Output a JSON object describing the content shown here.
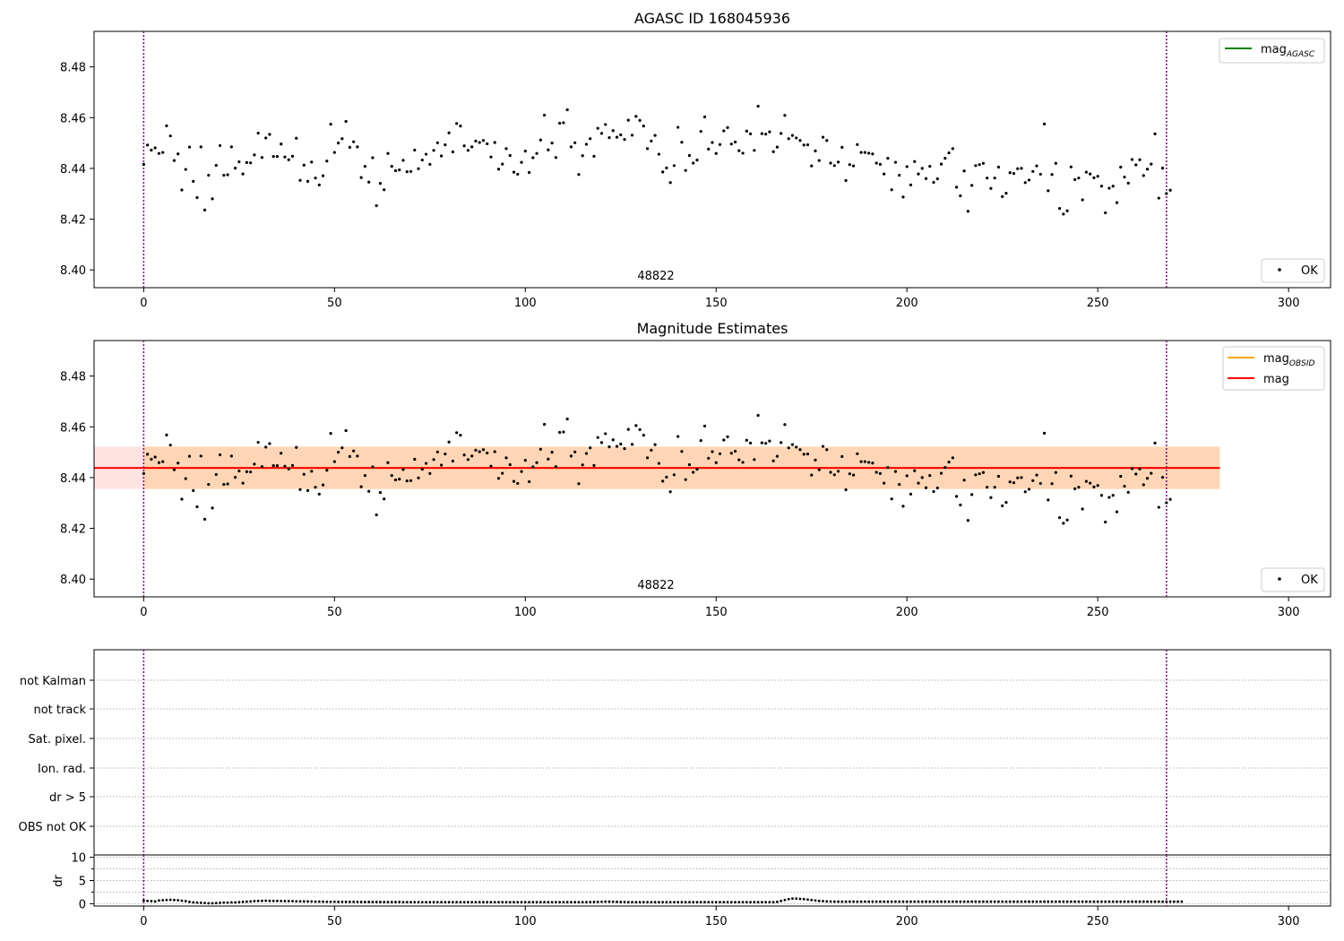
{
  "chart_data": [
    {
      "type": "scatter",
      "title": "AGASC ID 168045936",
      "xlim": [
        -13,
        311
      ],
      "ylim": [
        8.393,
        8.494
      ],
      "x_ticks": [
        0,
        50,
        100,
        150,
        200,
        250,
        300
      ],
      "y_ticks": [
        8.4,
        8.42,
        8.44,
        8.46,
        8.48
      ],
      "y_tick_labels": [
        "8.40",
        "8.42",
        "8.44",
        "8.46",
        "8.48"
      ],
      "annotation": {
        "text": "48822",
        "x": 134,
        "y": 8.397
      },
      "vlines": [
        0,
        268
      ],
      "vline_color": "#800080",
      "legend_lines": [
        {
          "label": "mag",
          "sub": "AGASC",
          "color": "#008000"
        }
      ],
      "legend_points": [
        {
          "label": "OK"
        }
      ],
      "point_color": "#000000",
      "grid": false
    },
    {
      "type": "scatter",
      "title": "Magnitude Estimates",
      "xlim": [
        -13,
        311
      ],
      "ylim": [
        8.393,
        8.494
      ],
      "x_ticks": [
        0,
        50,
        100,
        150,
        200,
        250,
        300
      ],
      "y_ticks": [
        8.4,
        8.42,
        8.44,
        8.46,
        8.48
      ],
      "y_tick_labels": [
        "8.40",
        "8.42",
        "8.44",
        "8.46",
        "8.48"
      ],
      "annotation": {
        "text": "48822",
        "x": 134,
        "y": 8.397
      },
      "vlines": [
        0,
        268
      ],
      "vline_color": "#800080",
      "mag_obsid": {
        "value": 8.4438,
        "low": 8.4355,
        "high": 8.4522,
        "x_start": 0,
        "x_end": 282,
        "color": "#ffa500"
      },
      "mag": {
        "value": 8.4438,
        "low": 8.4355,
        "high": 8.4522,
        "x_start": -13,
        "x_end": 282,
        "color": "#ff0000"
      },
      "legend_lines": [
        {
          "label": "mag",
          "sub": "OBSID",
          "color": "#ffa500"
        },
        {
          "label": "mag",
          "sub": "",
          "color": "#ff0000"
        }
      ],
      "legend_points": [
        {
          "label": "OK"
        }
      ],
      "grid": false
    },
    {
      "type": "scatter",
      "flags": [
        "not Kalman",
        "not track",
        "Sat. pixel.",
        "Ion. rad.",
        "dr > 5",
        "OBS not OK"
      ],
      "flag_points": [],
      "xlim": [
        -13,
        311
      ],
      "vlines": [
        0,
        268
      ],
      "grid": true
    },
    {
      "type": "scatter",
      "ylabel": "dr",
      "xlim": [
        -13,
        311
      ],
      "ylim": [
        -0.5,
        10.5
      ],
      "x_ticks": [
        0,
        50,
        100,
        150,
        200,
        250,
        300
      ],
      "y_ticks": [
        0,
        5,
        10
      ],
      "y_minor_ticks": [
        2.5,
        7.5
      ],
      "vlines": [
        0,
        268
      ],
      "grid": true
    }
  ],
  "series": {
    "n": 269,
    "mag_values": [
      8.4416,
      8.4492,
      8.4472,
      8.4481,
      8.4459,
      8.4463,
      8.4568,
      8.4528,
      8.4431,
      8.4457,
      8.4315,
      8.4396,
      8.4484,
      8.4349,
      8.4285,
      8.4485,
      8.4236,
      8.4373,
      8.428,
      8.4412,
      8.449,
      8.4373,
      8.4375,
      8.4485,
      8.4401,
      8.4426,
      8.4378,
      8.4423,
      8.4422,
      8.4453,
      8.4539,
      8.4443,
      8.452,
      8.4534,
      8.4447,
      8.4447,
      8.4496,
      8.4445,
      8.4434,
      8.4448,
      8.4519,
      8.4353,
      8.4413,
      8.4349,
      8.4425,
      8.4362,
      8.4335,
      8.4371,
      8.4429,
      8.4574,
      8.4463,
      8.45,
      8.4517,
      8.4585,
      8.4483,
      8.4505,
      8.4485,
      8.4364,
      8.4408,
      8.4346,
      8.4442,
      8.4253,
      8.4341,
      8.4316,
      8.4459,
      8.4408,
      8.4391,
      8.4394,
      8.4432,
      8.4387,
      8.4388,
      8.4472,
      8.4399,
      8.4433,
      8.4456,
      8.4416,
      8.4471,
      8.4501,
      8.4449,
      8.4493,
      8.454,
      8.4465,
      8.4577,
      8.4567,
      8.4489,
      8.4471,
      8.4485,
      8.4508,
      8.4502,
      8.451,
      8.4497,
      8.4445,
      8.4502,
      8.4397,
      8.4417,
      8.4478,
      8.4451,
      8.4385,
      8.4377,
      8.4424,
      8.4468,
      8.4384,
      8.4442,
      8.4459,
      8.4512,
      8.461,
      8.4473,
      8.45,
      8.4443,
      8.4578,
      8.458,
      8.4631,
      8.4485,
      8.4501,
      8.4376,
      8.445,
      8.4495,
      8.4517,
      8.4448,
      8.4558,
      8.4538,
      8.4573,
      8.4521,
      8.4549,
      8.4523,
      8.4532,
      8.4514,
      8.459,
      8.4531,
      8.4605,
      8.4589,
      8.4567,
      8.4478,
      8.4508,
      8.453,
      8.4456,
      8.4386,
      8.4402,
      8.4344,
      8.4411,
      8.4562,
      8.4503,
      8.4392,
      8.4451,
      8.4421,
      8.4433,
      8.4546,
      8.4603,
      8.4476,
      8.4502,
      8.4459,
      8.4494,
      8.4548,
      8.4561,
      8.4496,
      8.4504,
      8.447,
      8.446,
      8.4547,
      8.4536,
      8.4471,
      8.4645,
      8.4537,
      8.4535,
      8.4544,
      8.4466,
      8.4484,
      8.4538,
      8.4609,
      8.4517,
      8.453,
      8.452,
      8.451,
      8.4492,
      8.4493,
      8.441,
      8.4469,
      8.4431,
      8.4523,
      8.451,
      8.4421,
      8.4411,
      8.4425,
      8.4483,
      8.4352,
      8.4415,
      8.441,
      8.4494,
      8.4463,
      8.4463,
      8.446,
      8.4457,
      8.4421,
      8.4416,
      8.4378,
      8.444,
      8.4316,
      8.4424,
      8.4373,
      8.4287,
      8.4407,
      8.4335,
      8.4427,
      8.4378,
      8.44,
      8.436,
      8.4408,
      8.4345,
      8.4359,
      8.4417,
      8.444,
      8.4461,
      8.4478,
      8.4326,
      8.4292,
      8.439,
      8.4231,
      8.4333,
      8.4411,
      8.4415,
      8.442,
      8.4362,
      8.4321,
      8.4362,
      8.4405,
      8.4289,
      8.4302,
      8.4383,
      8.438,
      8.4399,
      8.44,
      8.4344,
      8.4354,
      8.4388,
      8.441,
      8.4377,
      8.4575,
      8.4312,
      8.4376,
      8.442,
      8.4242,
      8.422,
      8.4233,
      8.4406,
      8.4356,
      8.4362,
      8.4276,
      8.4385,
      8.4378,
      8.4363,
      8.4369,
      8.433,
      8.4225,
      8.4322,
      8.433,
      8.4265,
      8.4405,
      8.4366,
      8.4342,
      8.4435,
      8.4414,
      8.4434,
      8.4372,
      8.4397,
      8.4417,
      8.4536,
      8.4283,
      8.4401,
      8.4301,
      8.4314
    ],
    "dr_values": [
      0.7,
      0.6,
      0.55,
      0.5,
      0.7,
      0.75,
      0.8,
      0.85,
      0.8,
      0.75,
      0.65,
      0.55,
      0.4,
      0.3,
      0.25,
      0.2,
      0.15,
      0.1,
      0.1,
      0.15,
      0.2,
      0.25,
      0.25,
      0.3,
      0.3,
      0.35,
      0.4,
      0.45,
      0.5,
      0.55,
      0.6,
      0.62,
      0.65,
      0.62,
      0.6,
      0.6,
      0.58,
      0.56,
      0.55,
      0.55,
      0.52,
      0.5,
      0.5,
      0.48,
      0.48,
      0.45,
      0.45,
      0.45,
      0.42,
      0.42,
      0.42,
      0.4,
      0.4,
      0.4,
      0.4,
      0.4,
      0.4,
      0.38,
      0.38,
      0.38,
      0.38,
      0.38,
      0.38,
      0.36,
      0.36,
      0.36,
      0.36,
      0.36,
      0.35,
      0.35,
      0.35,
      0.35,
      0.35,
      0.35,
      0.35,
      0.35,
      0.35,
      0.35,
      0.35,
      0.35,
      0.35,
      0.35,
      0.35,
      0.35,
      0.35,
      0.35,
      0.35,
      0.35,
      0.35,
      0.35,
      0.34,
      0.34,
      0.34,
      0.34,
      0.34,
      0.34,
      0.34,
      0.34,
      0.34,
      0.34,
      0.34,
      0.34,
      0.34,
      0.34,
      0.34,
      0.34,
      0.34,
      0.34,
      0.34,
      0.34,
      0.34,
      0.34,
      0.34,
      0.34,
      0.34,
      0.34,
      0.35,
      0.36,
      0.38,
      0.4,
      0.42,
      0.45,
      0.45,
      0.42,
      0.4,
      0.38,
      0.36,
      0.35,
      0.34,
      0.34,
      0.34,
      0.34,
      0.34,
      0.34,
      0.34,
      0.34,
      0.34,
      0.34,
      0.34,
      0.34,
      0.34,
      0.34,
      0.34,
      0.34,
      0.34,
      0.34,
      0.34,
      0.34,
      0.34,
      0.34,
      0.34,
      0.34,
      0.34,
      0.34,
      0.34,
      0.34,
      0.34,
      0.34,
      0.34,
      0.34,
      0.34,
      0.34,
      0.34,
      0.34,
      0.34,
      0.34,
      0.4,
      0.6,
      0.8,
      1.0,
      1.1,
      1.1,
      1.05,
      1.0,
      0.9,
      0.8,
      0.7,
      0.6,
      0.55,
      0.5,
      0.48,
      0.45,
      0.45,
      0.45,
      0.45,
      0.45,
      0.45,
      0.45,
      0.45,
      0.45,
      0.45,
      0.45,
      0.45,
      0.45,
      0.45,
      0.45,
      0.45,
      0.45,
      0.45,
      0.45,
      0.45,
      0.45,
      0.45,
      0.45,
      0.45,
      0.45,
      0.45,
      0.45,
      0.45,
      0.45,
      0.45,
      0.45,
      0.45,
      0.45,
      0.45,
      0.45,
      0.45,
      0.45,
      0.45,
      0.45,
      0.45,
      0.45,
      0.45,
      0.45,
      0.45,
      0.45,
      0.45,
      0.45,
      0.45,
      0.45,
      0.45,
      0.45,
      0.45,
      0.45,
      0.45,
      0.45,
      0.45,
      0.45,
      0.45,
      0.45,
      0.45,
      0.45,
      0.45,
      0.45,
      0.45,
      0.45,
      0.45,
      0.45,
      0.45,
      0.45,
      0.45,
      0.45,
      0.45,
      0.45,
      0.45,
      0.45,
      0.45,
      0.45,
      0.45,
      0.45,
      0.45,
      0.45,
      0.45,
      0.45,
      0.45,
      0.45,
      0.45,
      0.45,
      0.45,
      0.45,
      0.45,
      0.45,
      0.45
    ]
  }
}
